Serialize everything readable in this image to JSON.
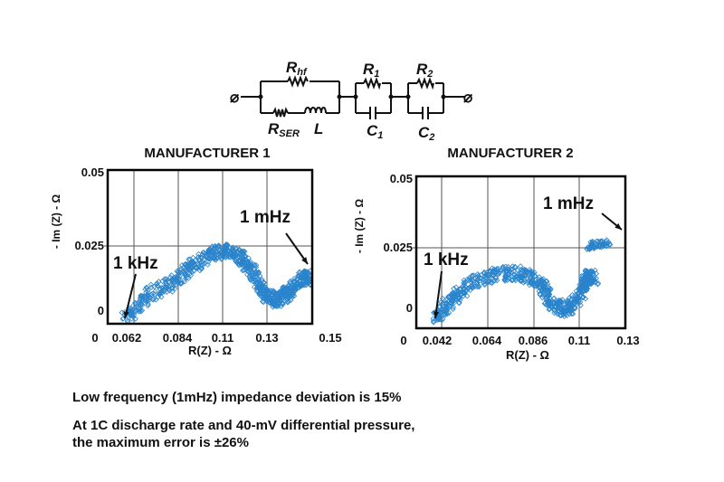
{
  "circuit": {
    "labels": {
      "rhf": "R",
      "rhf_sub": "hf",
      "rser": "R",
      "rser_sub": "SER",
      "l": "L",
      "r1": "R",
      "r1_sub": "1",
      "c1": "C",
      "c1_sub": "1",
      "r2": "R",
      "r2_sub": "2",
      "c2": "C",
      "c2_sub": "2"
    },
    "terminal_symbol": "⌀"
  },
  "colors": {
    "marker": "#2a84cc",
    "grid": "#555555",
    "axis": "#000000"
  },
  "chart_data": [
    {
      "type": "scatter",
      "title": "MANUFACTURER 1",
      "xlabel": "R(Z) - Ω",
      "ylabel": "- Im (Z) - Ω",
      "x_tick_labels": [
        "0",
        "0.062",
        "0.084",
        "0.11",
        "0.13",
        "0.15"
      ],
      "y_tick_labels": [
        "0.05",
        "0.025",
        "0"
      ],
      "ylim": [
        0,
        0.05
      ],
      "grid": true,
      "marker": "hollow-diamond",
      "annotations": [
        {
          "text": "1 kHz",
          "x": 0.057,
          "y": 0.0
        },
        {
          "text": "1 mHz",
          "x": 0.148,
          "y": 0.015
        }
      ],
      "points": [
        [
          0.057,
          0.001
        ],
        [
          0.0687,
          0.0086
        ],
        [
          0.081,
          0.0128
        ],
        [
          0.0925,
          0.0187
        ],
        [
          0.1052,
          0.0226
        ],
        [
          0.1129,
          0.0232
        ],
        [
          0.1198,
          0.0205
        ],
        [
          0.1251,
          0.0146
        ],
        [
          0.1292,
          0.0086
        ],
        [
          0.1349,
          0.0071
        ],
        [
          0.1402,
          0.0098
        ],
        [
          0.1455,
          0.0143
        ],
        [
          0.149,
          0.0145
        ]
      ]
    },
    {
      "type": "scatter",
      "title": "MANUFACTURER 2",
      "xlabel": "R(Z) - Ω",
      "ylabel": "- Im (Z) - Ω",
      "x_tick_labels": [
        "0",
        "0.042",
        "0.064",
        "0.086",
        "0.11",
        "0.13"
      ],
      "y_tick_labels": [
        "0.05",
        "0.025",
        "0"
      ],
      "ylim": [
        0,
        0.05
      ],
      "grid": true,
      "marker": "hollow-diamond",
      "annotations": [
        {
          "text": "1 kHz",
          "x": 0.0394,
          "y": 0.0
        },
        {
          "text": "1 mHz",
          "x": 0.126,
          "y": 0.026
        }
      ],
      "points": [
        [
          0.0394,
          0.0
        ],
        [
          0.0459,
          0.0063
        ],
        [
          0.0558,
          0.0127
        ],
        [
          0.0687,
          0.0158
        ],
        [
          0.0804,
          0.0161
        ],
        [
          0.0894,
          0.0127
        ],
        [
          0.0956,
          0.0051
        ],
        [
          0.1037,
          0.0032
        ],
        [
          0.1114,
          0.009
        ],
        [
          0.1134,
          0.0146
        ],
        [
          0.118,
          0.0146
        ]
      ],
      "low_freq_points": [
        [
          0.1145,
          0.0255
        ],
        [
          0.12,
          0.0262
        ],
        [
          0.126,
          0.0265
        ]
      ]
    }
  ],
  "notes": [
    "Low frequency (1mHz) impedance deviation is 15%",
    "At 1C discharge rate and 40-mV differential pressure,",
    "the maximum error is ±26%"
  ]
}
